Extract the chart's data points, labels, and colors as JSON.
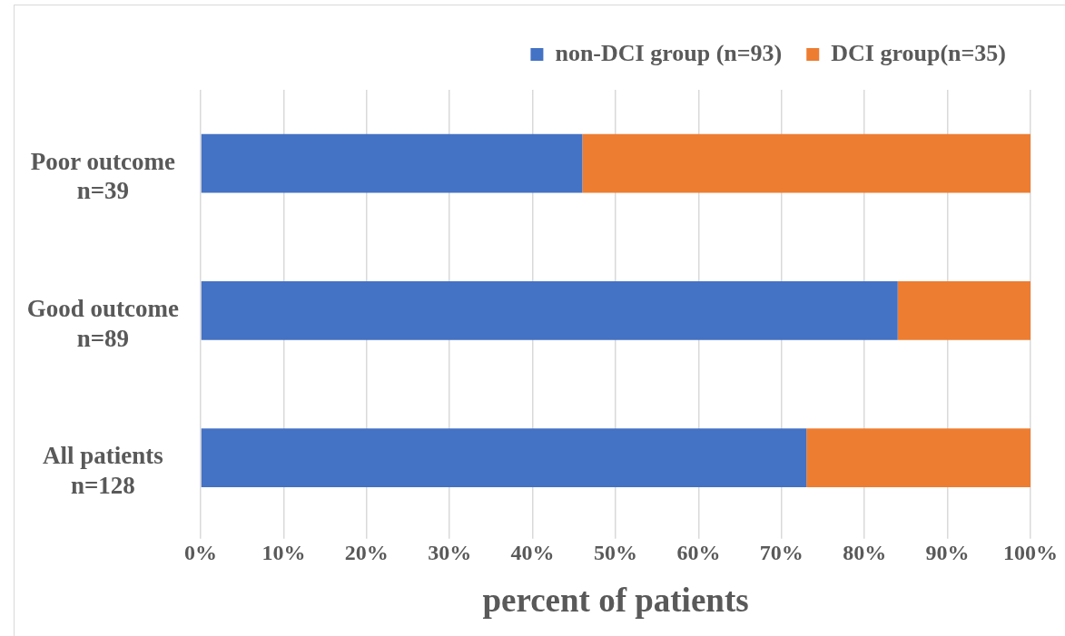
{
  "chart_data": {
    "type": "bar",
    "orientation": "horizontal",
    "stacked": true,
    "categories": [
      "Poor outcome n=39",
      "Good outcome n=89",
      "All patients n=128"
    ],
    "series": [
      {
        "name": "non-DCI group (n=93)",
        "color": "#4472c4",
        "values": [
          46,
          84,
          73
        ]
      },
      {
        "name": "DCI group(n=35)",
        "color": "#ed7d31",
        "values": [
          54,
          16,
          27
        ]
      }
    ],
    "xlabel": "percent of patients",
    "xlim": [
      0,
      100
    ],
    "xticks": [
      {
        "value": 0,
        "label": "0%"
      },
      {
        "value": 10,
        "label": "10%"
      },
      {
        "value": 20,
        "label": "20%"
      },
      {
        "value": 30,
        "label": "30%"
      },
      {
        "value": 40,
        "label": "40%"
      },
      {
        "value": 50,
        "label": "50%"
      },
      {
        "value": 60,
        "label": "60%"
      },
      {
        "value": 70,
        "label": "70%"
      },
      {
        "value": 80,
        "label": "80%"
      },
      {
        "value": 90,
        "label": "90%"
      },
      {
        "value": 100,
        "label": "100%"
      }
    ],
    "grid": "x",
    "legend": "top right"
  }
}
